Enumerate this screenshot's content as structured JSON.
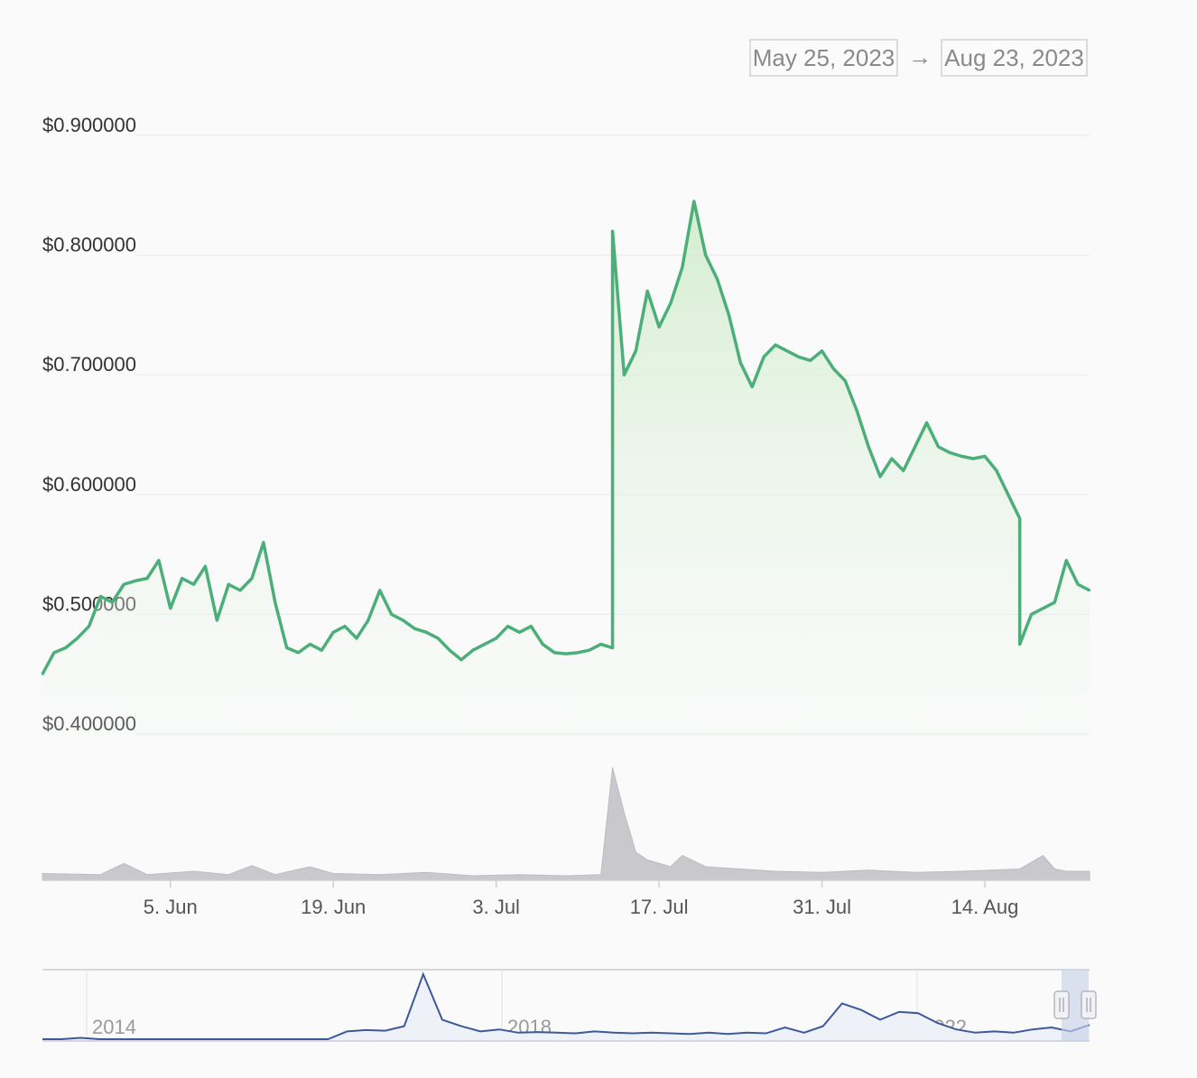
{
  "range_selector": {
    "from": "May 25, 2023",
    "arrow": "→",
    "to": "Aug 23, 2023"
  },
  "colors": {
    "price_line": "#4cae78",
    "price_fill_top": "#d8efd4",
    "volume": "#c9c9cd",
    "navigator_line": "#3c5a99",
    "navigator_handle": "#c7d3e6"
  },
  "chart_data": {
    "type": "area",
    "price_currency": "USD",
    "y_ticks": [
      "$0.900000",
      "$0.800000",
      "$0.700000",
      "$0.600000",
      "$0.500000",
      "$0.400000"
    ],
    "y_tick_values": [
      0.9,
      0.8,
      0.7,
      0.6,
      0.5,
      0.4
    ],
    "ylim": [
      0.4,
      0.9
    ],
    "xlim": [
      "2023-05-25",
      "2023-08-23"
    ],
    "x_ticks": [
      "5. Jun",
      "19. Jun",
      "3. Jul",
      "17. Jul",
      "31. Jul",
      "14. Aug"
    ],
    "x_tick_dates": [
      "2023-06-05",
      "2023-06-19",
      "2023-07-03",
      "2023-07-17",
      "2023-07-31",
      "2023-08-14"
    ],
    "grid": true,
    "price_series": {
      "x": [
        "2023-05-25",
        "2023-05-26",
        "2023-05-27",
        "2023-05-28",
        "2023-05-29",
        "2023-05-30",
        "2023-05-31",
        "2023-06-01",
        "2023-06-02",
        "2023-06-03",
        "2023-06-04",
        "2023-06-05",
        "2023-06-06",
        "2023-06-07",
        "2023-06-08",
        "2023-06-09",
        "2023-06-10",
        "2023-06-11",
        "2023-06-12",
        "2023-06-13",
        "2023-06-14",
        "2023-06-15",
        "2023-06-16",
        "2023-06-17",
        "2023-06-18",
        "2023-06-19",
        "2023-06-20",
        "2023-06-21",
        "2023-06-22",
        "2023-06-23",
        "2023-06-24",
        "2023-06-25",
        "2023-06-26",
        "2023-06-27",
        "2023-06-28",
        "2023-06-29",
        "2023-06-30",
        "2023-07-01",
        "2023-07-02",
        "2023-07-03",
        "2023-07-04",
        "2023-07-05",
        "2023-07-06",
        "2023-07-07",
        "2023-07-08",
        "2023-07-09",
        "2023-07-10",
        "2023-07-11",
        "2023-07-12",
        "2023-07-13",
        "2023-07-13",
        "2023-07-14",
        "2023-07-15",
        "2023-07-16",
        "2023-07-17",
        "2023-07-18",
        "2023-07-19",
        "2023-07-20",
        "2023-07-21",
        "2023-07-22",
        "2023-07-23",
        "2023-07-24",
        "2023-07-25",
        "2023-07-26",
        "2023-07-27",
        "2023-07-28",
        "2023-07-29",
        "2023-07-30",
        "2023-07-31",
        "2023-08-01",
        "2023-08-02",
        "2023-08-03",
        "2023-08-04",
        "2023-08-05",
        "2023-08-06",
        "2023-08-07",
        "2023-08-08",
        "2023-08-09",
        "2023-08-10",
        "2023-08-11",
        "2023-08-12",
        "2023-08-13",
        "2023-08-14",
        "2023-08-15",
        "2023-08-16",
        "2023-08-17",
        "2023-08-17",
        "2023-08-18",
        "2023-08-19",
        "2023-08-20",
        "2023-08-21",
        "2023-08-22",
        "2023-08-23"
      ],
      "y": [
        0.45,
        0.468,
        0.472,
        0.48,
        0.49,
        0.515,
        0.51,
        0.525,
        0.528,
        0.53,
        0.545,
        0.505,
        0.53,
        0.525,
        0.54,
        0.495,
        0.525,
        0.52,
        0.53,
        0.56,
        0.51,
        0.472,
        0.468,
        0.475,
        0.47,
        0.485,
        0.49,
        0.48,
        0.495,
        0.52,
        0.5,
        0.495,
        0.488,
        0.485,
        0.48,
        0.47,
        0.462,
        0.47,
        0.475,
        0.48,
        0.49,
        0.485,
        0.49,
        0.475,
        0.468,
        0.467,
        0.468,
        0.47,
        0.475,
        0.472,
        0.82,
        0.7,
        0.72,
        0.77,
        0.74,
        0.76,
        0.79,
        0.845,
        0.8,
        0.78,
        0.75,
        0.71,
        0.69,
        0.715,
        0.725,
        0.72,
        0.715,
        0.712,
        0.72,
        0.705,
        0.695,
        0.67,
        0.64,
        0.615,
        0.63,
        0.62,
        0.64,
        0.66,
        0.64,
        0.635,
        0.632,
        0.63,
        0.632,
        0.62,
        0.6,
        0.58,
        0.475,
        0.5,
        0.505,
        0.51,
        0.545,
        0.525,
        0.52
      ]
    },
    "volume_series": {
      "x": [
        "2023-05-25",
        "2023-05-30",
        "2023-06-01",
        "2023-06-03",
        "2023-06-07",
        "2023-06-10",
        "2023-06-12",
        "2023-06-14",
        "2023-06-17",
        "2023-06-19",
        "2023-06-23",
        "2023-06-27",
        "2023-07-01",
        "2023-07-05",
        "2023-07-09",
        "2023-07-12",
        "2023-07-13",
        "2023-07-14",
        "2023-07-15",
        "2023-07-16",
        "2023-07-17",
        "2023-07-18",
        "2023-07-19",
        "2023-07-21",
        "2023-07-24",
        "2023-07-27",
        "2023-07-31",
        "2023-08-04",
        "2023-08-08",
        "2023-08-12",
        "2023-08-17",
        "2023-08-19",
        "2023-08-20",
        "2023-08-21",
        "2023-08-23"
      ],
      "relative": [
        0.06,
        0.05,
        0.15,
        0.05,
        0.08,
        0.05,
        0.13,
        0.05,
        0.12,
        0.06,
        0.05,
        0.07,
        0.04,
        0.05,
        0.04,
        0.05,
        1.0,
        0.6,
        0.25,
        0.18,
        0.15,
        0.12,
        0.22,
        0.12,
        0.1,
        0.08,
        0.07,
        0.09,
        0.07,
        0.08,
        0.1,
        0.22,
        0.1,
        0.08,
        0.08
      ]
    },
    "navigator": {
      "labels": [
        "2014",
        "2018",
        "2022"
      ],
      "relative": [
        0.0,
        0.0,
        0.02,
        0.0,
        0.0,
        0.0,
        0.0,
        0.0,
        0.0,
        0.0,
        0.0,
        0.0,
        0.0,
        0.0,
        0.0,
        0.0,
        0.12,
        0.14,
        0.13,
        0.2,
        1.0,
        0.3,
        0.2,
        0.12,
        0.15,
        0.1,
        0.11,
        0.1,
        0.09,
        0.12,
        0.1,
        0.09,
        0.1,
        0.09,
        0.08,
        0.1,
        0.08,
        0.1,
        0.09,
        0.18,
        0.1,
        0.2,
        0.55,
        0.45,
        0.3,
        0.42,
        0.4,
        0.25,
        0.15,
        0.1,
        0.12,
        0.1,
        0.15,
        0.18,
        0.12,
        0.22
      ]
    }
  }
}
